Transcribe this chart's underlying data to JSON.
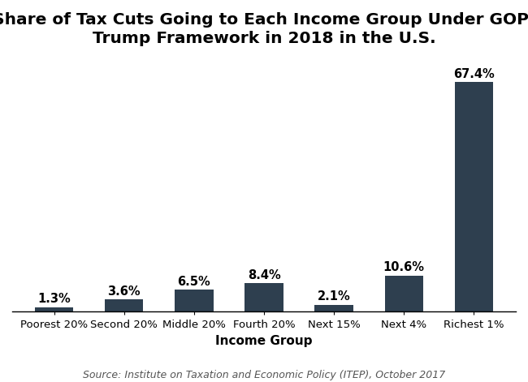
{
  "categories": [
    "Poorest 20%",
    "Second 20%",
    "Middle 20%",
    "Fourth 20%",
    "Next 15%",
    "Next 4%",
    "Richest 1%"
  ],
  "values": [
    1.3,
    3.6,
    6.5,
    8.4,
    2.1,
    10.6,
    67.4
  ],
  "labels": [
    "1.3%",
    "3.6%",
    "6.5%",
    "8.4%",
    "2.1%",
    "10.6%",
    "67.4%"
  ],
  "bar_color": "#2e3f4f",
  "title_line1": "Share of Tax Cuts Going to Each Income Group Under GOP-",
  "title_line2": "Trump Framework in 2018 in the U.S.",
  "xlabel": "Income Group",
  "ylabel": "",
  "ylim": [
    0,
    75
  ],
  "source": "Source: Institute on Taxation and Economic Policy (ITEP), October 2017",
  "title_fontsize": 14.5,
  "label_fontsize": 10.5,
  "axis_fontsize": 9.5,
  "xlabel_fontsize": 11,
  "source_fontsize": 9,
  "bar_width": 0.55,
  "background_color": "#ffffff"
}
